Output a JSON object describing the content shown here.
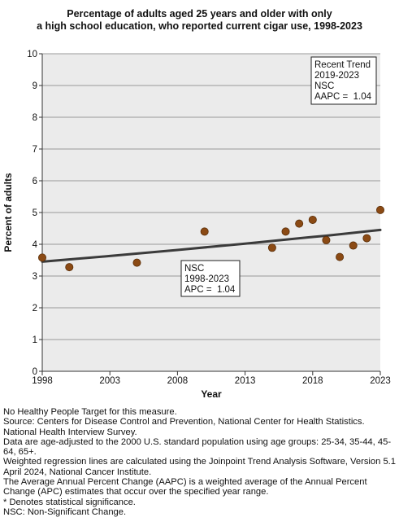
{
  "title_lines": [
    "Percentage of adults aged 25 years and older with only",
    "a high school education, who reported current cigar use, 1998-2023"
  ],
  "chart_data": {
    "type": "scatter",
    "title": "Percentage of adults aged 25 years and older with only a high school education, who reported current cigar use, 1998-2023",
    "xlabel": "Year",
    "ylabel": "Percent of adults",
    "xlim": [
      1998,
      2023
    ],
    "ylim": [
      0,
      10
    ],
    "x_ticks": [
      1998,
      2003,
      2008,
      2013,
      2018,
      2023
    ],
    "y_ticks": [
      0,
      1,
      2,
      3,
      4,
      5,
      6,
      7,
      8,
      9,
      10
    ],
    "grid": "horizontal",
    "points": [
      {
        "x": 1998,
        "y": 3.58
      },
      {
        "x": 2000,
        "y": 3.28
      },
      {
        "x": 2005,
        "y": 3.42
      },
      {
        "x": 2010,
        "y": 4.4
      },
      {
        "x": 2015,
        "y": 3.89
      },
      {
        "x": 2016,
        "y": 4.4
      },
      {
        "x": 2017,
        "y": 4.65
      },
      {
        "x": 2018,
        "y": 4.77
      },
      {
        "x": 2019,
        "y": 4.13
      },
      {
        "x": 2020,
        "y": 3.6
      },
      {
        "x": 2021,
        "y": 3.96
      },
      {
        "x": 2022,
        "y": 4.19
      },
      {
        "x": 2023,
        "y": 5.08
      }
    ],
    "trend_line": [
      {
        "x": 1998,
        "y": 3.45
      },
      {
        "x": 2003,
        "y": 3.63
      },
      {
        "x": 2008,
        "y": 3.82
      },
      {
        "x": 2013,
        "y": 4.02
      },
      {
        "x": 2018,
        "y": 4.23
      },
      {
        "x": 2019,
        "y": 4.27
      },
      {
        "x": 2023,
        "y": 4.45
      }
    ],
    "point_color": "#8b4a14",
    "line_color": "#3b3b3b",
    "annotations": [
      {
        "lines": [
          "Recent Trend",
          "2019-2023",
          "NSC",
          "AAPC =  1.04"
        ],
        "position": "top-right"
      },
      {
        "lines": [
          "NSC",
          "1998-2023",
          "APC =  1.04"
        ],
        "position": "middle"
      }
    ]
  },
  "notes": [
    "No Healthy People Target for this measure.",
    "Source: Centers for Disease Control and Prevention, National Center for Health Statistics. National Health Interview Survey.",
    "Data are age-adjusted to the 2000 U.S. standard population using age groups: 25-34, 35-44, 45-64, 65+.",
    "Weighted regression lines are calculated using the Joinpoint Trend Analysis Software, Version 5.1 April 2024, National Cancer Institute.",
    "The Average Annual Percent Change (AAPC) is a weighted average of the Annual Percent Change (APC) estimates that occur over the specified year range.",
    "* Denotes statistical significance.",
    "NSC: Non-Significant Change."
  ]
}
